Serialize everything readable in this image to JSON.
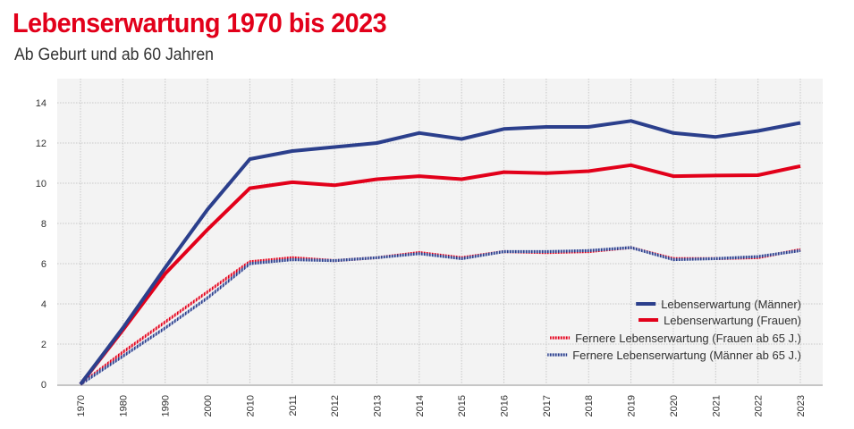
{
  "header": {
    "title": "Lebenserwartung 1970 bis 2023",
    "subtitle": "Ab Geburt und ab 60 Jahren"
  },
  "chart_data": {
    "type": "line",
    "title": "Lebenserwartung 1970 bis 2023",
    "subtitle": "Ab Geburt und ab 60 Jahren",
    "xlabel": "",
    "ylabel": "",
    "ylim": [
      0,
      14
    ],
    "yticks": [
      0,
      2,
      4,
      6,
      8,
      10,
      12,
      14
    ],
    "grid": true,
    "legend_position": "bottom-right",
    "categories": [
      "1970",
      "1980",
      "1990",
      "2000",
      "2010",
      "2011",
      "2012",
      "2013",
      "2014",
      "2015",
      "2016",
      "2017",
      "2018",
      "2019",
      "2020",
      "2021",
      "2022",
      "2023"
    ],
    "series": [
      {
        "name": "Lebenserwartung (Männer)",
        "color": "#2b3f8c",
        "style": "solid",
        "values": [
          0,
          2.8,
          5.8,
          8.7,
          11.2,
          11.6,
          11.8,
          12.0,
          12.5,
          12.2,
          12.7,
          12.8,
          12.8,
          13.1,
          12.5,
          12.3,
          12.6,
          13.0
        ]
      },
      {
        "name": "Lebenserwartung (Frauen)",
        "color": "#e2001a",
        "style": "solid",
        "values": [
          0,
          2.7,
          5.5,
          7.7,
          9.75,
          10.05,
          9.9,
          10.2,
          10.35,
          10.2,
          10.55,
          10.5,
          10.6,
          10.9,
          10.35,
          10.38,
          10.4,
          10.85
        ]
      },
      {
        "name": "Fernere Lebenserwartung (Frauen ab 65 J.)",
        "color": "#e2001a",
        "style": "hatched",
        "values": [
          0,
          1.6,
          3.1,
          4.6,
          6.1,
          6.3,
          6.15,
          6.3,
          6.55,
          6.3,
          6.6,
          6.55,
          6.6,
          6.8,
          6.25,
          6.25,
          6.3,
          6.7
        ]
      },
      {
        "name": "Fernere Lebenserwartung (Männer ab 65 J.)",
        "color": "#2b3f8c",
        "style": "hatched",
        "values": [
          0,
          1.4,
          2.8,
          4.3,
          6.0,
          6.2,
          6.15,
          6.3,
          6.5,
          6.25,
          6.6,
          6.6,
          6.65,
          6.8,
          6.2,
          6.25,
          6.35,
          6.65
        ]
      }
    ]
  }
}
